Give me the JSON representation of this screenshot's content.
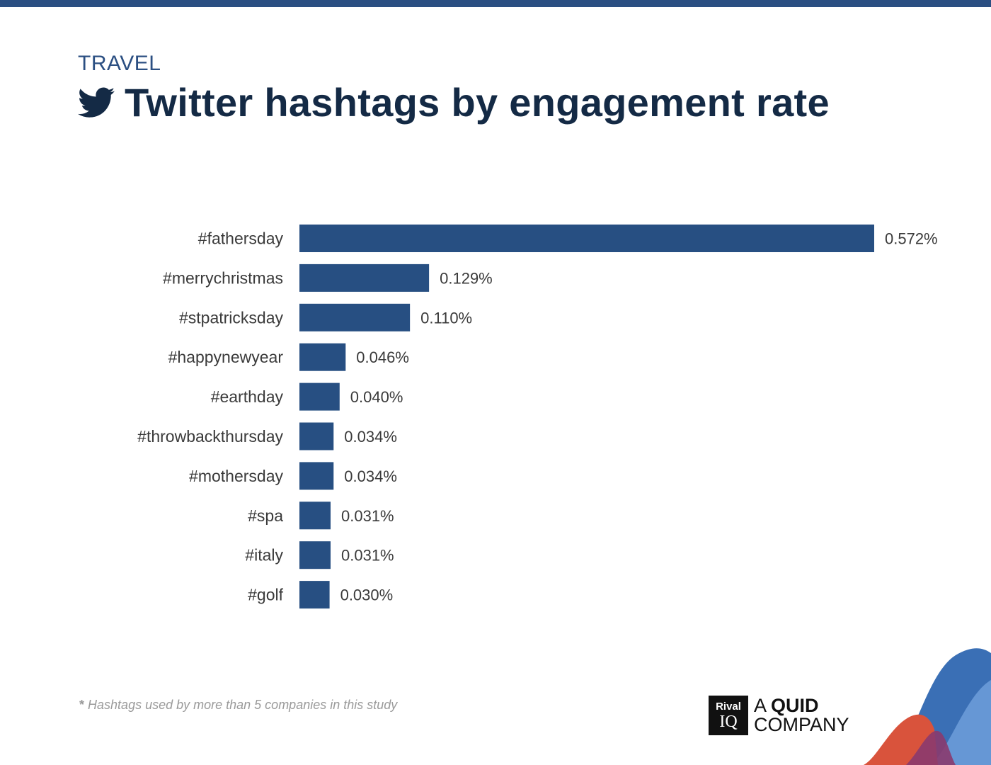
{
  "header": {
    "category": "TRAVEL",
    "title": "Twitter hashtags by engagement rate",
    "icon": "twitter-bird-icon"
  },
  "footnote": {
    "marker": "*",
    "text": "Hashtags used by more than 5 companies in this study"
  },
  "logo": {
    "box_line1": "Rival",
    "box_line2": "IQ",
    "text_prefix": "A ",
    "text_brand": "QUID",
    "text_line2": "COMPANY"
  },
  "colors": {
    "bar": "#274f82",
    "title": "#142a45",
    "accent": "#2b4f82",
    "label": "#3a3a3a"
  },
  "chart_data": {
    "type": "bar",
    "orientation": "horizontal",
    "categories": [
      "#fathersday",
      "#merrychristmas",
      "#stpatricksday",
      "#happynewyear",
      "#earthday",
      "#throwbackthursday",
      "#mothersday",
      "#spa",
      "#italy",
      "#golf"
    ],
    "values": [
      0.572,
      0.129,
      0.11,
      0.046,
      0.04,
      0.034,
      0.034,
      0.031,
      0.031,
      0.03
    ],
    "value_labels": [
      "0.572%",
      "0.129%",
      "0.110%",
      "0.046%",
      "0.040%",
      "0.034%",
      "0.034%",
      "0.031%",
      "0.031%",
      "0.030%"
    ],
    "xlim": [
      0,
      0.572
    ],
    "grid": false,
    "legend": "none"
  }
}
